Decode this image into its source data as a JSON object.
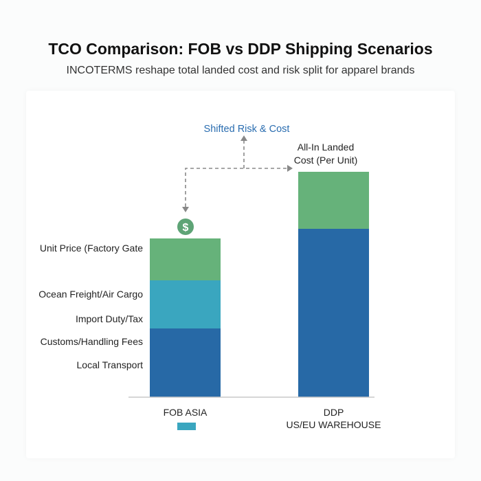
{
  "title": "TCO Comparison: FOB vs DDP Shipping Scenarios",
  "subtitle": "INCOTERMS reshape total landed cost and risk split for apparel brands",
  "chart_data": {
    "type": "bar",
    "stacked": true,
    "title": "TCO Comparison: FOB vs DDP Shipping Scenarios",
    "subtitle": "INCOTERMS reshape total landed cost and risk split for apparel brands",
    "categories": [
      "FOB ASIA",
      "DDP\nUS/EU WAREHOUSE"
    ],
    "category_lines": [
      [
        "FOB ASIA"
      ],
      [
        "DDP",
        "US/EU WAREHOUSE"
      ]
    ],
    "stacks": [
      {
        "category": "FOB ASIA",
        "segments": [
          {
            "value": 100,
            "color": "#2769a6"
          },
          {
            "value": 70,
            "color": "#3aa6bf"
          },
          {
            "value": 61,
            "color": "#66b27a"
          }
        ]
      },
      {
        "category": "DDP\nUS/EU WAREHOUSE",
        "segments": [
          {
            "value": 245,
            "color": "#2769a6"
          },
          {
            "value": 83,
            "color": "#66b27a"
          }
        ]
      }
    ],
    "ylim": [
      0,
      340
    ],
    "grid": false,
    "component_labels": [
      "Unit Price (Factory Gate",
      "Ocean Freight/Air Cargo",
      "Import Duty/Tax",
      "Customs/Handling Fees",
      "Local Transport"
    ],
    "annotations": {
      "shifted": "Shifted Risk & Cost",
      "landed_line1": "All-In Landed",
      "landed_line2": "Cost (Per Unit)",
      "dollar": "$"
    },
    "legend_swatch_color": "#3aa6bf",
    "colors": {
      "blue": "#2769a6",
      "teal": "#3aa6bf",
      "green": "#66b27a",
      "annotation": "#2a6db0",
      "arrow": "#888888"
    }
  }
}
